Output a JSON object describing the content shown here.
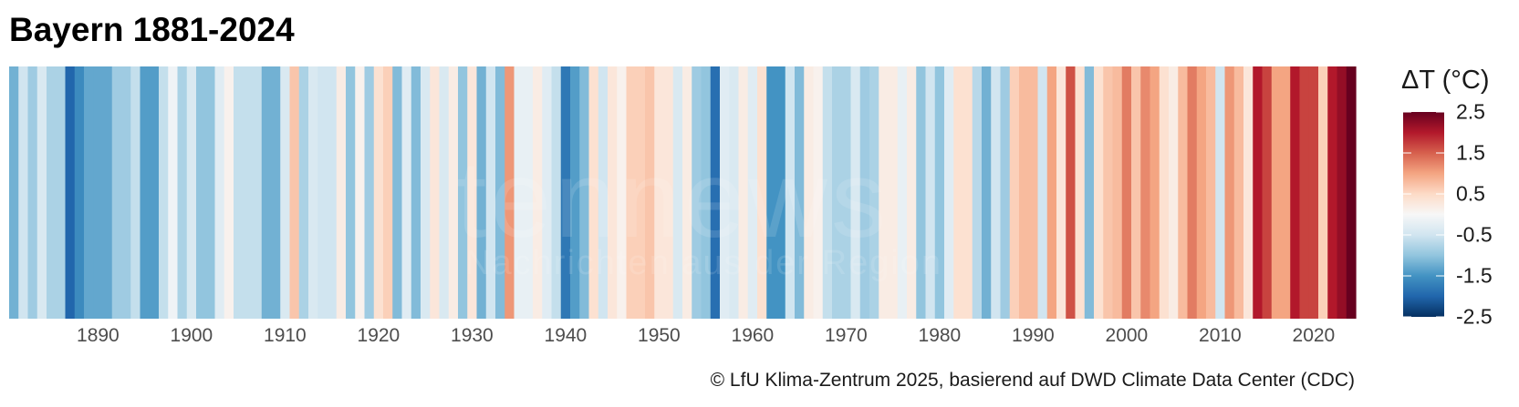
{
  "chart_data": {
    "type": "heatmap",
    "title": "Bayern 1881-2024",
    "legend_title": "ΔT (°C)",
    "legend_placement": "right",
    "color_scale": {
      "name": "RdBu diverging",
      "range": [
        -2.5,
        2.5
      ],
      "low": "#053061",
      "mid": "#f7f7f7",
      "high": "#67001f"
    },
    "legend_ticks": [
      "2.5",
      "1.5",
      "0.5",
      "-0.5",
      "-1.5",
      "-2.5"
    ],
    "legend_tick_values": [
      2.5,
      1.5,
      0.5,
      -0.5,
      -1.5,
      -2.5
    ],
    "x_ticks": [
      "1890",
      "1900",
      "1910",
      "1920",
      "1930",
      "1940",
      "1950",
      "1960",
      "1970",
      "1980",
      "1990",
      "2000",
      "2010",
      "2020"
    ],
    "start_year": 1881,
    "end_year": 2024,
    "values": [
      -1.2,
      -0.5,
      -0.9,
      -0.4,
      -0.8,
      -0.8,
      -2.0,
      -1.6,
      -1.3,
      -1.3,
      -1.3,
      -0.9,
      -0.9,
      -0.6,
      -1.4,
      -1.4,
      -0.6,
      -0.1,
      -0.8,
      -0.4,
      -1.0,
      -1.0,
      -0.3,
      0.1,
      -0.6,
      -0.6,
      -0.6,
      -1.2,
      -1.2,
      -0.4,
      0.7,
      -0.8,
      -0.4,
      -0.5,
      -0.5,
      0.2,
      -1.0,
      0.1,
      -0.9,
      0.4,
      0.6,
      -1.1,
      -0.3,
      -1.1,
      -0.4,
      0.3,
      -0.4,
      0.2,
      -1.0,
      0.3,
      -1.2,
      -0.5,
      -1.1,
      1.1,
      -0.2,
      -0.2,
      0.2,
      -0.3,
      -0.6,
      -1.8,
      -1.4,
      -1.1,
      0.4,
      -0.5,
      0.3,
      0.1,
      0.6,
      0.6,
      0.7,
      0.3,
      0.3,
      -0.4,
      0.2,
      -0.9,
      -1.0,
      -1.9,
      -0.3,
      -0.4,
      0.2,
      -0.3,
      0.4,
      -1.5,
      -1.5,
      -0.5,
      -1.1,
      0.2,
      0.1,
      -0.6,
      -0.8,
      -0.8,
      -0.4,
      -0.9,
      -0.8,
      0.2,
      0.2,
      -0.2,
      0.2,
      -1.0,
      -0.5,
      -1.0,
      -0.3,
      0.4,
      0.4,
      -0.7,
      -1.2,
      -0.5,
      -0.9,
      0.6,
      0.8,
      0.8,
      -0.5,
      1.0,
      0.3,
      1.6,
      0.4,
      -1.1,
      0.4,
      0.7,
      0.8,
      1.3,
      0.7,
      1.2,
      1.0,
      0.4,
      0.2,
      0.8,
      1.3,
      1.0,
      0.8,
      -0.5,
      1.1,
      0.8,
      0.3,
      2.0,
      1.7,
      1.0,
      1.0,
      2.0,
      1.7,
      1.7,
      0.6,
      2.0,
      2.2,
      2.5
    ]
  },
  "footer": "© LfU Klima-Zentrum 2025, basierend auf DWD Climate Data Center (CDC)",
  "watermark": {
    "logo": "tennews",
    "sub": "Nachrichten aus der Region"
  }
}
